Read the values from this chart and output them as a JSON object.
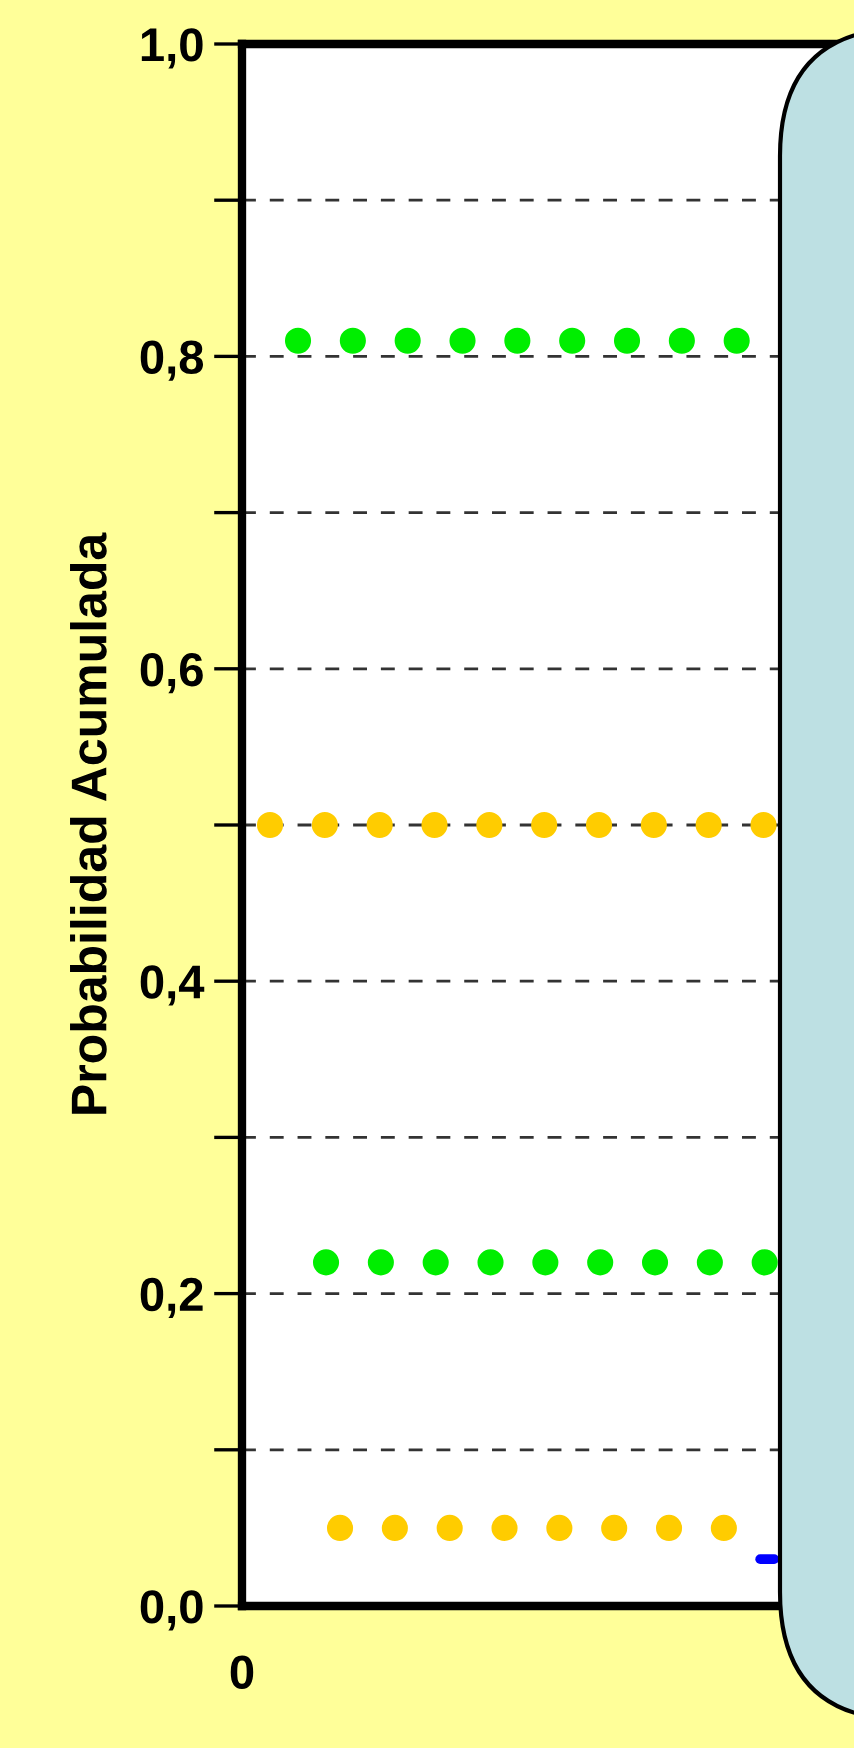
{
  "chart_data": {
    "type": "line",
    "ylabel": "Probabilidad Acumulada",
    "annotations": [
      "0"
    ],
    "categories": [
      null,
      null,
      null,
      null,
      null,
      null,
      null,
      null,
      null,
      null,
      null,
      null,
      null,
      null,
      null,
      null,
      null,
      null,
      null,
      null,
      null,
      null,
      null,
      null,
      null,
      null,
      null,
      null,
      null,
      null,
      null,
      null,
      null,
      null,
      null,
      null,
      null,
      null,
      null,
      null,
      null,
      null,
      null,
      null
    ],
    "ylim": [
      0,
      1.0
    ],
    "yticks": [
      {
        "value": 0,
        "label": "0,0"
      },
      {
        "value": 0.1,
        "label": null
      },
      {
        "value": 0.2,
        "label": "0,2"
      },
      {
        "value": 0.3,
        "label": null
      },
      {
        "value": 0.4,
        "label": "0,4"
      },
      {
        "value": 0.5,
        "label": null
      },
      {
        "value": 0.6,
        "label": "0,6"
      },
      {
        "value": 0.7,
        "label": null
      },
      {
        "value": 0.8,
        "label": "0,8"
      },
      {
        "value": 0.9,
        "label": null
      },
      {
        "value": 1.0,
        "label": "1,0"
      }
    ],
    "grid": "y",
    "series": [
      {
        "color": "#00ee00",
        "line_style": "dotted",
        "values": [
          null,
          null,
          null,
          null,
          0.81,
          0.81,
          0.81,
          0.81,
          0.81,
          0.81,
          0.81,
          0.81,
          0.81,
          0.81,
          0.81,
          0.81,
          0.81,
          0.81,
          0.81,
          0.81,
          0.81,
          0.81,
          0.81,
          0.81,
          0.81,
          0.81,
          0.81,
          0.81,
          0.81,
          0.81,
          0.81,
          0.81,
          0.81,
          0.81,
          0.81,
          0.81,
          0.81,
          null,
          null,
          null,
          null,
          null,
          null,
          null
        ]
      },
      {
        "color": "#ffcc00",
        "line_style": "dotted",
        "values": [
          null,
          null,
          0.5,
          0.5,
          0.5,
          0.5,
          0.5,
          0.5,
          0.5,
          0.5,
          0.5,
          0.5,
          0.5,
          0.5,
          0.5,
          0.5,
          0.5,
          0.5,
          0.5,
          0.5,
          0.5,
          0.5,
          0.5,
          0.5,
          0.5,
          0.5,
          0.5,
          0.5,
          0.5,
          0.5,
          0.5,
          0.5,
          0.5,
          0.5,
          0.5,
          0.5,
          0.5,
          0.5,
          0.5,
          null,
          null,
          null,
          null,
          null
        ]
      },
      {
        "color": "#00ee00",
        "line_style": "dotted",
        "values": [
          null,
          null,
          null,
          null,
          null,
          null,
          0.22,
          0.22,
          0.22,
          0.22,
          0.22,
          0.22,
          0.22,
          0.22,
          0.22,
          0.22,
          0.22,
          0.22,
          0.22,
          0.22,
          0.22,
          0.22,
          0.22,
          0.22,
          0.22,
          0.22,
          0.22,
          0.22,
          0.22,
          0.22,
          0.22,
          0.22,
          0.22,
          0.22,
          0.22,
          0.22,
          0.22,
          0.22,
          0.22,
          null,
          null,
          null,
          null,
          null
        ]
      },
      {
        "color": "#ffcc00",
        "line_style": "dotted",
        "values": [
          null,
          null,
          null,
          null,
          null,
          null,
          null,
          0.05,
          0.05,
          0.05,
          0.05,
          0.05,
          0.05,
          0.05,
          0.05,
          0.05,
          0.05,
          0.05,
          0.05,
          0.05,
          0.05,
          0.05,
          0.05,
          0.05,
          0.05,
          0.05,
          0.05,
          0.05,
          0.05,
          0.05,
          0.05,
          0.05,
          0.05,
          0.05,
          0.05,
          0.05,
          0.05,
          null,
          null,
          null,
          null,
          null,
          null,
          null
        ]
      },
      {
        "color": "#0000ff",
        "line_style": "solid",
        "values": [
          null,
          null,
          null,
          null,
          null,
          null,
          null,
          null,
          null,
          null,
          null,
          null,
          null,
          null,
          null,
          null,
          null,
          null,
          null,
          null,
          null,
          null,
          null,
          null,
          null,
          null,
          null,
          null,
          null,
          null,
          null,
          null,
          null,
          null,
          null,
          null,
          null,
          0.03,
          0.03,
          null,
          null,
          null,
          null,
          null
        ]
      }
    ]
  }
}
